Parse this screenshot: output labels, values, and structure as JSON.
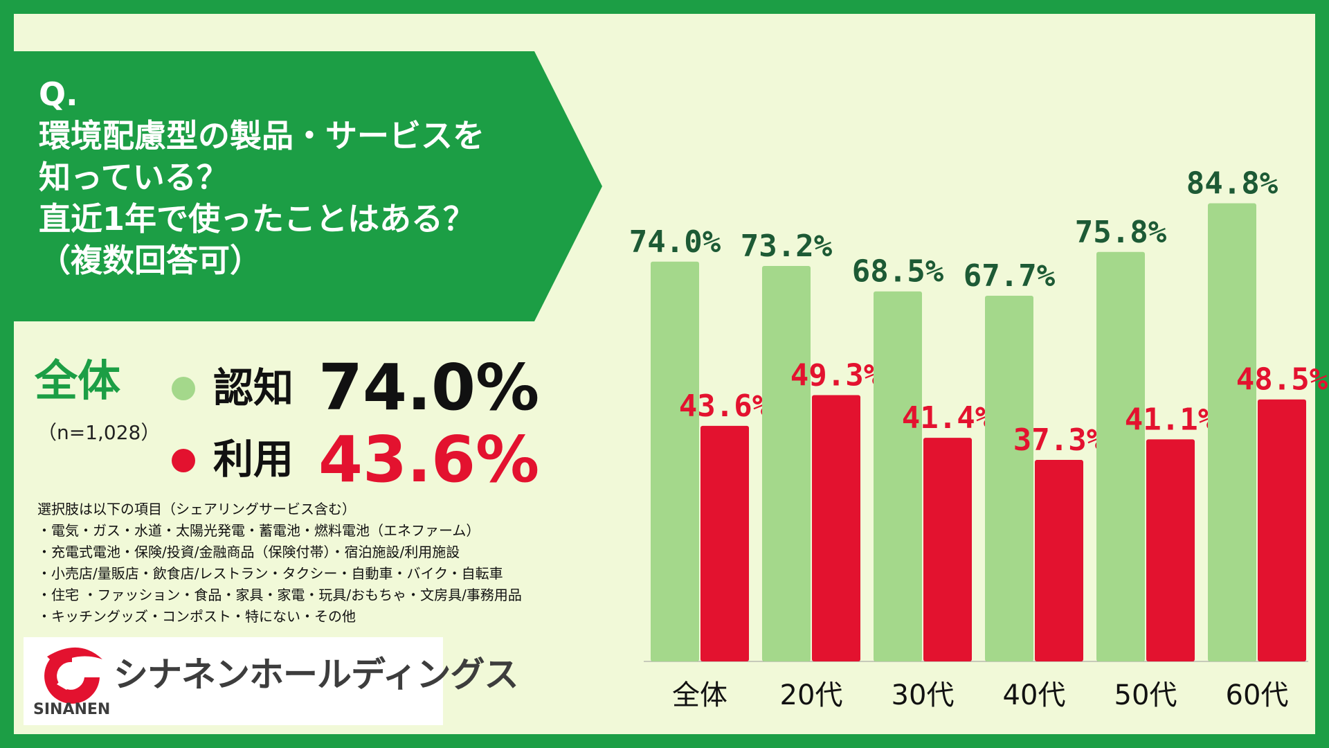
{
  "question": {
    "lines": [
      "Q.",
      "環境配慮型の製品・サービスを",
      "知っている？",
      "直近1年で使ったことはある？",
      "（複数回答可）"
    ]
  },
  "summary": {
    "label": "全体",
    "n": "（n=1,028）",
    "awareness_label": "認知",
    "awareness_value": "74.0%",
    "usage_label": "利用",
    "usage_value": "43.6%"
  },
  "options": {
    "lines": [
      "選択肢は以下の項目（シェアリングサービス含む）",
      "・電気・ガス・水道・太陽光発電・蓄電池・燃料電池（エネファーム）",
      "・充電式電池・保険/投資/金融商品（保険付帯）・宿泊施設/利用施設",
      "・小売店/量販店・飲食店/レストラン・タクシー・自動車・バイク・自転車",
      "・住宅 ・ファッション・食品・家具・家電・玩具/おもちゃ・文房具/事務用品",
      "・キッチングッズ・コンポスト・特にない・その他"
    ]
  },
  "logo": {
    "name": "シナネンホールディングス",
    "sub": "SINANEN"
  },
  "colors": {
    "frame": "#1c9e45",
    "background": "#f1f9d8",
    "awareness": "#a4d88b",
    "usage": "#e3122f",
    "awareness_label": "#1d5a35",
    "usage_label": "#e3122f"
  },
  "chart_data": {
    "type": "bar",
    "categories": [
      "全体",
      "20代",
      "30代",
      "40代",
      "50代",
      "60代"
    ],
    "series": [
      {
        "name": "認知",
        "values": [
          74.0,
          73.2,
          68.5,
          67.7,
          75.8,
          84.8
        ],
        "labels": [
          "74.0%",
          "73.2%",
          "68.5%",
          "67.7%",
          "75.8%",
          "84.8%"
        ]
      },
      {
        "name": "利用",
        "values": [
          43.6,
          49.3,
          41.4,
          37.3,
          41.1,
          48.5
        ],
        "labels": [
          "43.6%",
          "49.3%",
          "41.4%",
          "37.3%",
          "41.1%",
          "48.5%"
        ]
      }
    ],
    "ylim": [
      0,
      100
    ],
    "grid": false,
    "legend": "none"
  }
}
